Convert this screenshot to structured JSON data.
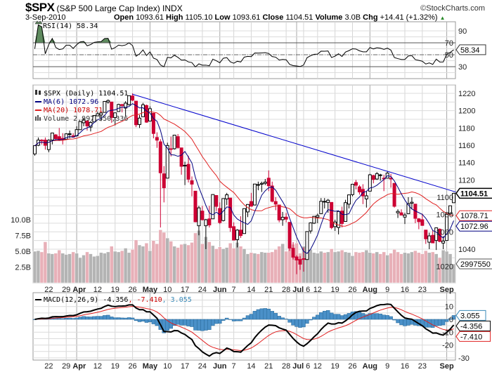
{
  "header": {
    "symbol": "$SPX",
    "name": "(S&P 500 Large Cap Index) INDX",
    "credit": "©StockCharts.com",
    "date": "3-Sep-2010",
    "open_label": "Open",
    "open": "1093.61",
    "high_label": "High",
    "high": "1105.10",
    "low_label": "Low",
    "low": "1093.61",
    "close_label": "Close",
    "close": "1104.51",
    "volume_label": "Volume",
    "volume": "3.0B",
    "chg_label": "Chg",
    "chg": "+14.41 (+1.32%)",
    "chg_icon": "triangle-up-icon"
  },
  "colors": {
    "up_candle": "#ffffff",
    "down_candle": "#cc0033",
    "ma6": "#000080",
    "ma20": "#e02020",
    "trendline": "#0000cc",
    "volume_up": "#b4b4b4",
    "volume_down": "#e8b0b8",
    "rsi_fill": "#5e8a5e",
    "macd": "#000000",
    "signal": "#e02020",
    "histogram": "#4a90c8"
  },
  "chart_data": {
    "type": "candlestick",
    "legend": {
      "price": "$SPX (Daily) 1104.51",
      "ma6": "MA(6) 1072.96",
      "ma20": "MA(20) 1078.71",
      "volume": "Volume 2,997,550,336"
    },
    "last_values": {
      "close": "1104.51",
      "ma20": "1078.71",
      "ma6": "1072.96",
      "volume": "2997550",
      "rsi": "58.34",
      "macd": "-4.356",
      "signal": "-7.410",
      "histogram": "3.055"
    },
    "price_axis": {
      "ylim": [
        1000,
        1230
      ],
      "ticks": [
        "1220",
        "1200",
        "1180",
        "1160",
        "1140",
        "1120",
        "1100",
        "1080",
        "1060",
        "1040",
        "1020"
      ]
    },
    "volume_axis": {
      "unit": "B",
      "ticks": [
        "10.0B",
        "7.5B",
        "5.0B",
        "2.5B"
      ],
      "tick_values": [
        10,
        7.5,
        5,
        2.5
      ]
    },
    "x_ticks": [
      {
        "date": "3/22",
        "label": "22"
      },
      {
        "date": "3/29",
        "label": "29"
      },
      {
        "date": "4/1",
        "label": "Apr",
        "month": true
      },
      {
        "date": "4/12",
        "label": "12"
      },
      {
        "date": "4/19",
        "label": "19"
      },
      {
        "date": "4/26",
        "label": "26"
      },
      {
        "date": "5/3",
        "label": "May",
        "month": true
      },
      {
        "date": "5/10",
        "label": "10"
      },
      {
        "date": "5/17",
        "label": "17"
      },
      {
        "date": "5/24",
        "label": "24"
      },
      {
        "date": "6/1",
        "label": "Jun",
        "month": true
      },
      {
        "date": "6/7",
        "label": "7"
      },
      {
        "date": "6/14",
        "label": "14"
      },
      {
        "date": "6/21",
        "label": "21"
      },
      {
        "date": "6/28",
        "label": "28"
      },
      {
        "date": "7/1",
        "label": "Jul",
        "month": true
      },
      {
        "date": "7/6",
        "label": "6"
      },
      {
        "date": "7/12",
        "label": "12"
      },
      {
        "date": "7/19",
        "label": "19"
      },
      {
        "date": "7/26",
        "label": "26"
      },
      {
        "date": "8/2",
        "label": "Aug",
        "month": true
      },
      {
        "date": "8/9",
        "label": "9"
      },
      {
        "date": "8/16",
        "label": "16"
      },
      {
        "date": "8/23",
        "label": "23"
      },
      {
        "date": "9/1",
        "label": "Sep",
        "month": true
      }
    ],
    "trendline": [
      [
        "4/26",
        1219
      ],
      [
        "9/3",
        1106
      ]
    ],
    "rsi": {
      "label": "RSI(14) 58.34",
      "period": 14,
      "ticks": [
        "90",
        "70",
        "50",
        "30"
      ],
      "tick_values": [
        90,
        70,
        50,
        30
      ],
      "ylim": [
        10,
        100
      ],
      "overbought": 70,
      "oversold": 30
    },
    "macd": {
      "label_prefix": "MACD(12,26,9)",
      "macd": "-4.356",
      "signal": "-7.410",
      "hist": "3.055",
      "ticks": [
        "10",
        "0",
        "-10",
        "-20",
        "-30"
      ],
      "tick_values": [
        10,
        0,
        -10,
        -20,
        -30
      ],
      "ylim": [
        -32,
        20
      ]
    },
    "ohlcv_columns": [
      "date",
      "open",
      "high",
      "low",
      "close",
      "volume_billions"
    ],
    "ohlcv": [
      [
        "3/16",
        1150,
        1160,
        1148,
        1159.5,
        5.0
      ],
      [
        "3/17",
        1160,
        1169,
        1159,
        1166,
        5.1
      ],
      [
        "3/18",
        1166,
        1167,
        1161,
        1165.8,
        4.9
      ],
      [
        "3/19",
        1166,
        1169,
        1155,
        1159.9,
        6.5
      ],
      [
        "3/22",
        1155,
        1167,
        1152,
        1165.8,
        4.7
      ],
      [
        "3/23",
        1166,
        1174,
        1161,
        1174.2,
        4.6
      ],
      [
        "3/24",
        1172,
        1173,
        1165,
        1167.7,
        4.7
      ],
      [
        "3/25",
        1170,
        1180,
        1165,
        1165.7,
        5.2
      ],
      [
        "3/26",
        1168,
        1174,
        1161,
        1166.6,
        4.7
      ],
      [
        "3/29",
        1167,
        1174,
        1167,
        1173.2,
        4.5
      ],
      [
        "3/30",
        1173,
        1177,
        1168,
        1173.3,
        4.6
      ],
      [
        "3/31",
        1171,
        1174,
        1169,
        1169.4,
        4.9
      ],
      [
        "4/1",
        1171,
        1182,
        1170,
        1178.1,
        4.7
      ],
      [
        "4/5",
        1178,
        1188,
        1178,
        1187.4,
        4.0
      ],
      [
        "4/6",
        1186,
        1192,
        1182,
        1189.4,
        4.4
      ],
      [
        "4/7",
        1188,
        1189,
        1177,
        1182.4,
        4.9
      ],
      [
        "4/8",
        1181,
        1188,
        1176,
        1186.4,
        4.6
      ],
      [
        "4/9",
        1187,
        1194,
        1187,
        1194.4,
        4.2
      ],
      [
        "4/12",
        1194,
        1199,
        1194,
        1196.5,
        4.3
      ],
      [
        "4/13",
        1195,
        1199,
        1188,
        1197.3,
        4.8
      ],
      [
        "4/14",
        1198,
        1210,
        1198,
        1210.7,
        4.7
      ],
      [
        "4/15",
        1210,
        1213,
        1208,
        1211.7,
        4.9
      ],
      [
        "4/16",
        1210,
        1210,
        1186,
        1192.1,
        5.8
      ],
      [
        "4/19",
        1192,
        1197,
        1183,
        1197.5,
        5.0
      ],
      [
        "4/20",
        1199,
        1208,
        1199,
        1207.2,
        4.9
      ],
      [
        "4/21",
        1207,
        1208,
        1198,
        1205.9,
        5.1
      ],
      [
        "4/22",
        1203,
        1211,
        1193,
        1208.7,
        5.5
      ],
      [
        "4/23",
        1207,
        1217,
        1206,
        1217.3,
        4.8
      ],
      [
        "4/26",
        1217,
        1220,
        1211,
        1212.1,
        5.3
      ],
      [
        "4/27",
        1211,
        1211,
        1181,
        1183.7,
        6.8
      ],
      [
        "4/28",
        1184,
        1195,
        1180,
        1191.4,
        6.0
      ],
      [
        "4/29",
        1193,
        1209,
        1193,
        1206.8,
        5.8
      ],
      [
        "4/30",
        1206,
        1207,
        1186,
        1186.7,
        6.3
      ],
      [
        "5/3",
        1188,
        1205,
        1188,
        1202.3,
        5.1
      ],
      [
        "5/4",
        1197,
        1197,
        1168,
        1173.6,
        6.7
      ],
      [
        "5/5",
        1169,
        1175,
        1157,
        1165.9,
        6.2
      ],
      [
        "5/6",
        1164,
        1167,
        1065,
        1128.2,
        8.4
      ],
      [
        "5/7",
        1127,
        1136,
        1094,
        1110.9,
        8.0
      ],
      [
        "5/10",
        1122,
        1163,
        1122,
        1159.7,
        7.1
      ],
      [
        "5/11",
        1156,
        1170,
        1147,
        1155.8,
        6.6
      ],
      [
        "5/12",
        1156,
        1172,
        1155,
        1171.7,
        5.8
      ],
      [
        "5/13",
        1170,
        1173,
        1156,
        1157.4,
        5.6
      ],
      [
        "5/14",
        1157,
        1157,
        1126,
        1135.7,
        6.1
      ],
      [
        "5/17",
        1136,
        1141,
        1114,
        1136.9,
        6.2
      ],
      [
        "5/18",
        1138,
        1148,
        1117,
        1120.8,
        6.0
      ],
      [
        "5/19",
        1119,
        1124,
        1101,
        1115.1,
        6.4
      ],
      [
        "5/20",
        1107,
        1107,
        1071,
        1071.6,
        7.9
      ],
      [
        "5/21",
        1067,
        1090,
        1056,
        1087.7,
        8.3
      ],
      [
        "5/24",
        1084,
        1090,
        1073,
        1074.0,
        6.2
      ],
      [
        "5/25",
        1067,
        1075,
        1040,
        1074.0,
        7.3
      ],
      [
        "5/26",
        1075,
        1090,
        1065,
        1067.9,
        6.5
      ],
      [
        "5/27",
        1075,
        1103,
        1075,
        1103.1,
        5.9
      ],
      [
        "5/28",
        1102,
        1102,
        1084,
        1089.4,
        5.4
      ],
      [
        "6/1",
        1087,
        1094,
        1069,
        1070.7,
        5.7
      ],
      [
        "6/2",
        1073,
        1098,
        1072,
        1098.4,
        5.4
      ],
      [
        "6/3",
        1098,
        1105,
        1091,
        1102.8,
        5.6
      ],
      [
        "6/4",
        1099,
        1099,
        1060,
        1064.9,
        6.3
      ],
      [
        "6/7",
        1066,
        1071,
        1050,
        1050.5,
        5.5
      ],
      [
        "6/8",
        1051,
        1063,
        1042,
        1062.0,
        6.4
      ],
      [
        "6/9",
        1062,
        1078,
        1053,
        1055.7,
        5.8
      ],
      [
        "6/10",
        1058,
        1087,
        1058,
        1086.8,
        5.4
      ],
      [
        "6/11",
        1083,
        1092,
        1077,
        1091.6,
        4.6
      ],
      [
        "6/14",
        1095,
        1105,
        1089,
        1089.6,
        4.8
      ],
      [
        "6/15",
        1091,
        1115,
        1091,
        1115.2,
        4.7
      ],
      [
        "6/16",
        1114,
        1118,
        1108,
        1114.6,
        4.6
      ],
      [
        "6/17",
        1115,
        1118,
        1106,
        1116.0,
        4.9
      ],
      [
        "6/18",
        1116,
        1121,
        1114,
        1117.5,
        4.8
      ],
      [
        "6/21",
        1122,
        1131,
        1107,
        1113.2,
        4.8
      ],
      [
        "6/22",
        1113,
        1118,
        1094,
        1095.3,
        4.9
      ],
      [
        "6/23",
        1095,
        1100,
        1085,
        1092.0,
        5.3
      ],
      [
        "6/24",
        1091,
        1091,
        1071,
        1073.7,
        5.8
      ],
      [
        "6/25",
        1074,
        1083,
        1067,
        1076.8,
        6.2
      ],
      [
        "6/28",
        1077,
        1082,
        1071,
        1074.6,
        5.0
      ],
      [
        "6/29",
        1071,
        1071,
        1038,
        1041.2,
        6.9
      ],
      [
        "6/30",
        1041,
        1048,
        1028,
        1030.7,
        6.1
      ],
      [
        "7/1",
        1031,
        1033,
        1011,
        1027.4,
        6.3
      ],
      [
        "7/2",
        1028,
        1032,
        1016,
        1022.6,
        4.7
      ],
      [
        "7/6",
        1029,
        1042,
        1014,
        1028.1,
        5.8
      ],
      [
        "7/7",
        1028,
        1060,
        1028,
        1060.3,
        5.2
      ],
      [
        "7/8",
        1061,
        1071,
        1058,
        1070.3,
        5.3
      ],
      [
        "7/9",
        1070,
        1078,
        1069,
        1077.9,
        4.8
      ],
      [
        "7/12",
        1077,
        1081,
        1070,
        1078.8,
        4.7
      ],
      [
        "7/13",
        1081,
        1099,
        1081,
        1095.3,
        5.0
      ],
      [
        "7/14",
        1095,
        1099,
        1087,
        1095.2,
        4.8
      ],
      [
        "7/15",
        1094,
        1098,
        1082,
        1096.5,
        4.9
      ],
      [
        "7/16",
        1094,
        1094,
        1063,
        1064.9,
        5.4
      ],
      [
        "7/19",
        1066,
        1074,
        1061,
        1071.3,
        4.9
      ],
      [
        "7/20",
        1065,
        1083,
        1057,
        1083.5,
        5.0
      ],
      [
        "7/21",
        1084,
        1089,
        1065,
        1069.6,
        5.2
      ],
      [
        "7/22",
        1072,
        1097,
        1072,
        1093.7,
        4.9
      ],
      [
        "7/23",
        1092,
        1103,
        1087,
        1102.7,
        4.8
      ],
      [
        "7/26",
        1103,
        1115,
        1101,
        1115.0,
        4.3
      ],
      [
        "7/27",
        1117,
        1120,
        1109,
        1113.8,
        4.9
      ],
      [
        "7/28",
        1112,
        1114,
        1103,
        1106.1,
        4.8
      ],
      [
        "7/29",
        1109,
        1115,
        1092,
        1101.5,
        4.9
      ],
      [
        "7/30",
        1098,
        1107,
        1088,
        1101.6,
        5.2
      ],
      [
        "8/2",
        1107,
        1127,
        1107,
        1125.9,
        4.8
      ],
      [
        "8/3",
        1125,
        1126,
        1116,
        1120.5,
        4.7
      ],
      [
        "8/4",
        1121,
        1129,
        1120,
        1127.2,
        4.9
      ],
      [
        "8/5",
        1125,
        1127,
        1119,
        1125.8,
        4.6
      ],
      [
        "8/6",
        1122,
        1126,
        1107,
        1121.6,
        4.9
      ],
      [
        "8/9",
        1122,
        1130,
        1122,
        1127.8,
        4.4
      ],
      [
        "8/10",
        1122,
        1127,
        1111,
        1121.1,
        4.7
      ],
      [
        "8/11",
        1116,
        1116,
        1088,
        1089.5,
        5.3
      ],
      [
        "8/12",
        1082,
        1086,
        1076,
        1083.6,
        4.9
      ],
      [
        "8/13",
        1082,
        1086,
        1079,
        1079.3,
        4.6
      ],
      [
        "8/16",
        1077,
        1082,
        1069,
        1079.4,
        4.8
      ],
      [
        "8/17",
        1081,
        1100,
        1081,
        1092.5,
        4.7
      ],
      [
        "8/18",
        1093,
        1100,
        1086,
        1094.2,
        4.9
      ],
      [
        "8/19",
        1092,
        1092,
        1070,
        1075.6,
        5.1
      ],
      [
        "8/20",
        1075,
        1076,
        1063,
        1071.7,
        4.8
      ],
      [
        "8/23",
        1074,
        1081,
        1067,
        1067.4,
        4.6
      ],
      [
        "8/24",
        1062,
        1062,
        1046,
        1051.9,
        5.1
      ],
      [
        "8/25",
        1048,
        1059,
        1040,
        1055.3,
        4.8
      ],
      [
        "8/26",
        1056,
        1062,
        1047,
        1047.2,
        4.9
      ],
      [
        "8/27",
        1050,
        1065,
        1039,
        1064.6,
        4.6
      ],
      [
        "8/30",
        1063,
        1064,
        1048,
        1048.9,
        4.0
      ],
      [
        "8/31",
        1047,
        1055,
        1040,
        1049.3,
        5.2
      ],
      [
        "9/1",
        1050,
        1081,
        1050,
        1080.3,
        5.0
      ],
      [
        "9/2",
        1081,
        1090,
        1080,
        1090.1,
        4.6
      ],
      [
        "9/3",
        1093.61,
        1105.1,
        1093.61,
        1104.51,
        3.0
      ]
    ]
  }
}
